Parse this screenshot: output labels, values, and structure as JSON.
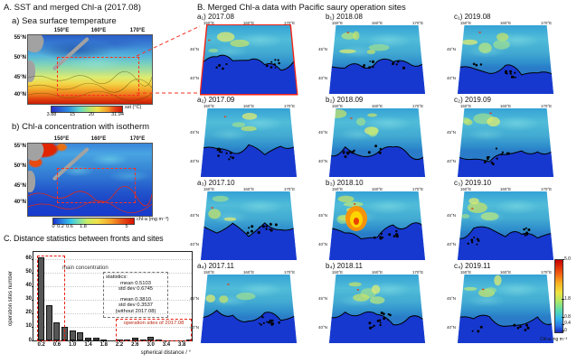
{
  "panelA": {
    "title": "A. SST and merged Chl-a (2017.08)",
    "map_a": {
      "label": "a) Sea surface temperature"
    },
    "map_b": {
      "label": "b) Chl-a concentration with isotherm"
    },
    "lon_ticks": [
      "150°E",
      "160°E",
      "170°E"
    ],
    "lat_ticks": [
      "55°N",
      "50°N",
      "45°N",
      "40°N"
    ],
    "sst_colorbar": {
      "label": "sst (°C)",
      "ticks": [
        "3.88",
        "15",
        "20",
        "31.94"
      ]
    },
    "chla_colorbar": {
      "label": "chl-a (mg m⁻³)",
      "ticks": [
        "0",
        "0.2",
        "0.6",
        "1.8",
        "5"
      ]
    }
  },
  "panelB": {
    "title": "B. Merged Chl-a data with Pacific saury operation sites",
    "lon_ticks": [
      "150°E",
      "160°E",
      "170°E"
    ],
    "lat_ticks": [
      "45°N",
      "40°N"
    ],
    "colorbar": {
      "label": "Chl-a mg m⁻³",
      "ticks": [
        "5.0",
        "1.8",
        "0.8",
        "0.4",
        "0"
      ]
    },
    "maps": [
      {
        "id": "a1",
        "label": "a₁) 2017.08",
        "year_month": "2017.08",
        "highlight": true
      },
      {
        "id": "b1",
        "label": "b₁) 2018.08",
        "year_month": "2018.08",
        "highlight": false
      },
      {
        "id": "c1",
        "label": "c₁) 2019.08",
        "year_month": "2019.08",
        "highlight": false
      },
      {
        "id": "a2",
        "label": "a₂) 2017.09",
        "year_month": "2017.09",
        "highlight": false
      },
      {
        "id": "b2",
        "label": "b₂) 2018.09",
        "year_month": "2018.09",
        "highlight": false
      },
      {
        "id": "c2",
        "label": "c₂) 2019.09",
        "year_month": "2019.09",
        "highlight": false
      },
      {
        "id": "a3",
        "label": "a₃) 2017.10",
        "year_month": "2017.10",
        "highlight": false
      },
      {
        "id": "b3",
        "label": "b₃) 2018.10",
        "year_month": "2018.10",
        "highlight": false
      },
      {
        "id": "c3",
        "label": "c₃) 2019.10",
        "year_month": "2019.10",
        "highlight": false
      },
      {
        "id": "a4",
        "label": "a₄) 2017.11",
        "year_month": "2017.11",
        "highlight": false
      },
      {
        "id": "b4",
        "label": "b₄) 2018.11",
        "year_month": "2018.11",
        "highlight": false
      },
      {
        "id": "c4",
        "label": "c₄) 2019.11",
        "year_month": "2019.11",
        "highlight": false
      }
    ]
  },
  "panelC": {
    "title": "C. Distance statistics between fronts and sites",
    "ylabel": "operation sites number",
    "xlabel": "spherical distance / °",
    "main_concentration_label": "main concentration",
    "stats_box": {
      "lines": [
        "statistics:",
        "mean 0.5103",
        "std dev 0.6745",
        "mean 0.3810",
        "std dev 0.3537",
        "(without 2017.08)"
      ]
    },
    "sites_box_label": "operation sites of 2017.08"
  },
  "chart_data": {
    "type": "bar",
    "title": "C. Distance statistics between fronts and sites",
    "xlabel": "spherical distance / °",
    "ylabel": "operation sites number",
    "bin_width": 0.2,
    "bin_centers": [
      0.2,
      0.4,
      0.6,
      0.8,
      1.0,
      1.2,
      1.4,
      1.6,
      1.8,
      2.0,
      2.2,
      2.4,
      2.6,
      2.8,
      3.0,
      3.2,
      3.4,
      3.6,
      3.8,
      4.0
    ],
    "values": [
      61,
      26,
      13,
      10,
      7,
      6,
      2,
      2,
      1,
      0,
      1,
      1,
      2,
      1,
      3,
      1,
      0,
      0,
      0,
      1
    ],
    "x_tick_labels": [
      "0.2",
      "0.6",
      "1.0",
      "1.4",
      "1.8",
      "2.2",
      "2.6",
      "3.0",
      "3.4",
      "3.8"
    ],
    "y_ticks": [
      0,
      10,
      20,
      30,
      40,
      50,
      60
    ],
    "xlim": [
      0,
      4.05
    ],
    "ylim": [
      0,
      65
    ],
    "grid": "horizontal-dotted",
    "annotations": {
      "main_concentration_range": [
        0.1,
        0.75
      ],
      "sites_2017_08_range": [
        2.1,
        4.05
      ],
      "stats": {
        "mean": 0.5103,
        "std_dev": 0.6745,
        "mean_without_2017_08": 0.381,
        "std_dev_without_2017_08": 0.3537
      }
    }
  }
}
